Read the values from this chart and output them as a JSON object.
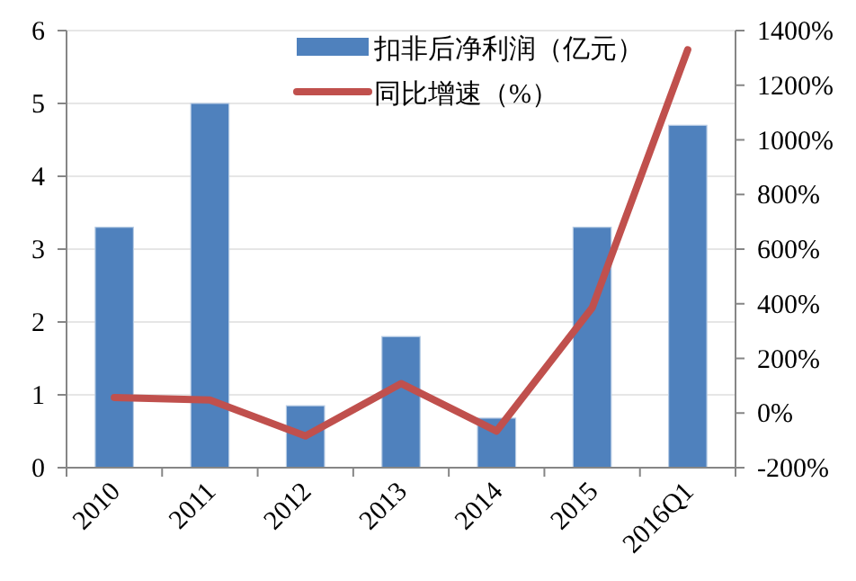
{
  "chart_data": {
    "type": "bar",
    "categories": [
      "2010",
      "2011",
      "2012",
      "2013",
      "2014",
      "2015",
      "2016Q1"
    ],
    "series": [
      {
        "name": "扣非后净利润（亿元）",
        "color": "#4f81bd",
        "values": [
          3.3,
          5.0,
          0.85,
          1.8,
          0.68,
          3.3,
          4.7
        ]
      },
      {
        "name": "同比增速（%）",
        "type": "line",
        "axis": "y2",
        "color": "#c0504d",
        "values": [
          57,
          48,
          -84,
          108,
          -66,
          385,
          1330
        ]
      }
    ],
    "ylim": [
      0,
      6
    ],
    "yticks": [
      0,
      1,
      2,
      3,
      4,
      5,
      6
    ],
    "y2lim": [
      -200,
      1400
    ],
    "y2ticks": [
      {
        "value": -200,
        "label": "-200%"
      },
      {
        "value": 0,
        "label": "0%"
      },
      {
        "value": 200,
        "label": "200%"
      },
      {
        "value": 400,
        "label": "400%"
      },
      {
        "value": 600,
        "label": "600%"
      },
      {
        "value": 800,
        "label": "800%"
      },
      {
        "value": 1000,
        "label": "1000%"
      },
      {
        "value": 1200,
        "label": "1200%"
      },
      {
        "value": 1400,
        "label": "1400%"
      }
    ],
    "grid": "y",
    "legend": "top right",
    "marker": "none",
    "line_style": "solid"
  }
}
